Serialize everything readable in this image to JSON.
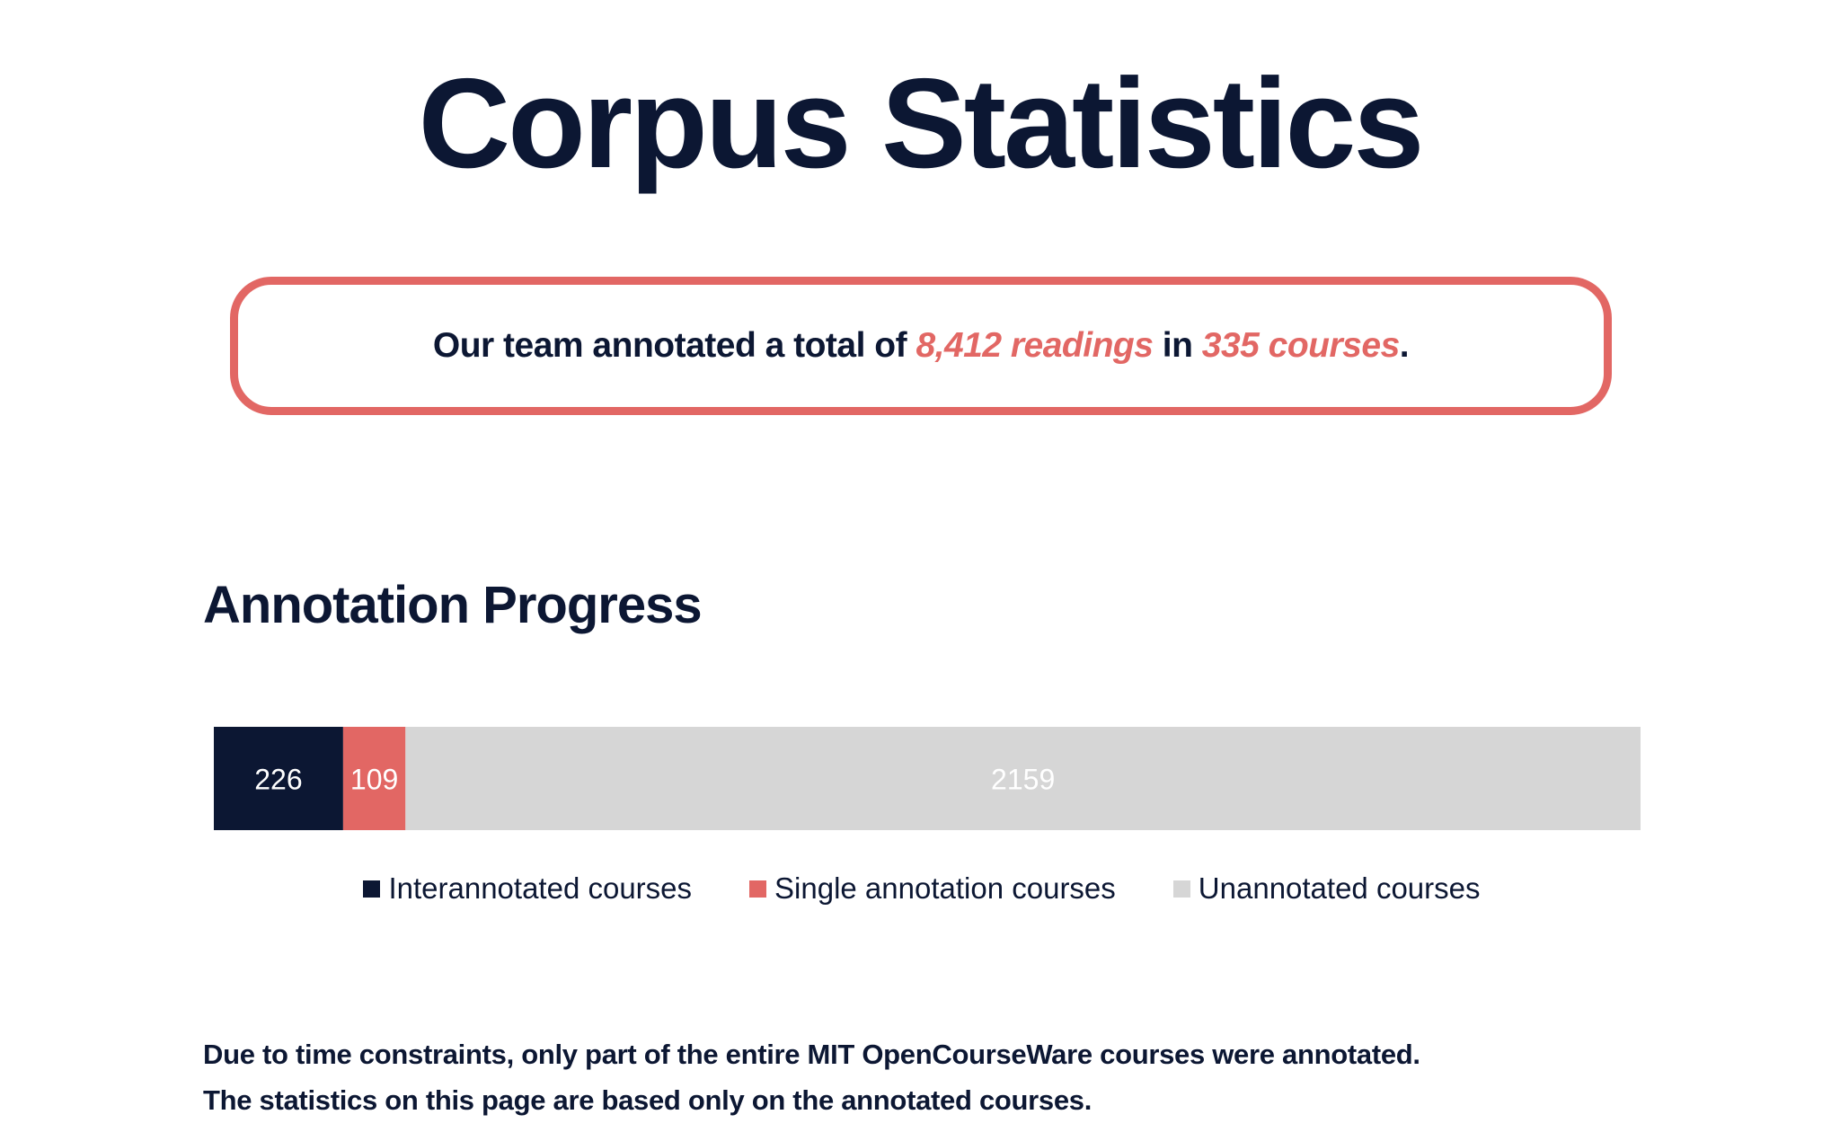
{
  "page_title": "Corpus Statistics",
  "summary": {
    "prefix": "Our team annotated a total of ",
    "readings": "8,412 readings",
    "middle": " in ",
    "courses": "335 courses",
    "suffix": "."
  },
  "section_title": "Annotation Progress",
  "colors": {
    "navy": "#0c1733",
    "coral": "#e26764",
    "gray": "#d6d6d6"
  },
  "chart_data": {
    "type": "bar",
    "orientation": "horizontal",
    "stacked": true,
    "categories": [
      ""
    ],
    "series": [
      {
        "name": "Interannotated courses",
        "values": [
          226
        ],
        "color": "#0c1733"
      },
      {
        "name": "Single annotation courses",
        "values": [
          109
        ],
        "color": "#e26764"
      },
      {
        "name": "Unannotated courses",
        "values": [
          2159
        ],
        "color": "#d6d6d6"
      }
    ],
    "xlim": [
      0,
      2494
    ],
    "grid": false,
    "legend": "bottom"
  },
  "footnote": {
    "line1": "Due to time constraints, only part of the entire MIT OpenCourseWare courses were annotated.",
    "line2": "The statistics on this page are based only on the annotated courses."
  }
}
